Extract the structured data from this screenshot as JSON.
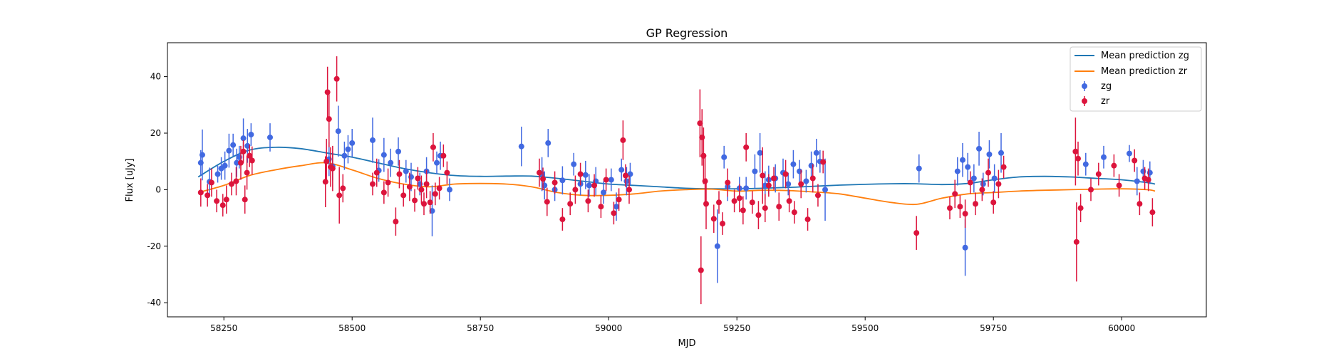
{
  "chart_data": {
    "type": "scatter",
    "title": "GP Regression",
    "xlabel": "MJD",
    "ylabel": "Flux [uJy]",
    "xlim": [
      58140,
      60165
    ],
    "ylim": [
      -45,
      52
    ],
    "xticks": [
      58250,
      58500,
      58750,
      59000,
      59250,
      59500,
      59750,
      60000
    ],
    "yticks": [
      -40,
      -20,
      0,
      20,
      40
    ],
    "legend_position": "top-right",
    "legend": [
      {
        "label": "Mean prediction zg",
        "kind": "line",
        "color": "#1f77b4"
      },
      {
        "label": "Mean prediction zr",
        "kind": "line",
        "color": "#ff7f0e"
      },
      {
        "label": "zg",
        "kind": "errorbar",
        "color": "#4169e1"
      },
      {
        "label": "zr",
        "kind": "errorbar",
        "color": "#dc143c"
      }
    ],
    "mean_prediction_zg": {
      "x": [
        58200,
        58250,
        58300,
        58350,
        58400,
        58450,
        58500,
        58550,
        58600,
        58650,
        58700,
        58750,
        58800,
        58850,
        58900,
        58950,
        59000,
        59050,
        59100,
        59150,
        59200,
        59250,
        59300,
        59350,
        59400,
        59450,
        59500,
        59550,
        59600,
        59650,
        59700,
        59750,
        59800,
        59850,
        59900,
        59950,
        60000,
        60050,
        60065
      ],
      "y": [
        4.5,
        10,
        14,
        15,
        14.5,
        13,
        11.5,
        9.5,
        7.5,
        6,
        5,
        4.7,
        4.8,
        4.8,
        4,
        3,
        2,
        1.5,
        1,
        0.5,
        0.3,
        0.3,
        0.5,
        0.8,
        1.2,
        1.6,
        1.9,
        2.1,
        2.1,
        1.8,
        2.2,
        3.5,
        4.5,
        4.7,
        4.5,
        4,
        3.5,
        2.5,
        2
      ]
    },
    "mean_prediction_zr": {
      "x": [
        58200,
        58250,
        58300,
        58350,
        58400,
        58450,
        58500,
        58550,
        58600,
        58650,
        58700,
        58750,
        58800,
        58850,
        58900,
        58950,
        59000,
        59050,
        59100,
        59150,
        59200,
        59250,
        59300,
        59350,
        59400,
        59450,
        59500,
        59550,
        59600,
        59650,
        59700,
        59750,
        59800,
        59850,
        59900,
        59950,
        60000,
        60050,
        60065
      ],
      "y": [
        -1,
        1.5,
        5,
        7,
        8.5,
        9.5,
        7,
        4,
        2,
        1,
        2,
        2.2,
        2,
        1,
        -1,
        -2,
        -2,
        -1.5,
        -0.5,
        0,
        0.2,
        -0.5,
        -0.2,
        -0.3,
        -0.8,
        -1.5,
        -3,
        -4.5,
        -5.2,
        -3,
        -1.5,
        -1,
        -0.5,
        -0.2,
        0,
        0.2,
        0.3,
        0,
        -0.5
      ]
    },
    "series": [
      {
        "name": "zg",
        "x": [
          58205,
          58208,
          58222,
          58238,
          58245,
          58252,
          58260,
          58268,
          58275,
          58280,
          58288,
          58296,
          58303,
          58340,
          58455,
          58462,
          58473,
          58485,
          58492,
          58500,
          58540,
          58552,
          58562,
          58575,
          58590,
          58605,
          58615,
          58632,
          58645,
          58656,
          58665,
          58672,
          58690,
          58830,
          58870,
          58875,
          58882,
          58895,
          58910,
          58932,
          58945,
          58955,
          58962,
          58975,
          58990,
          59005,
          59015,
          59025,
          59035,
          59042,
          59212,
          59225,
          59232,
          59255,
          59268,
          59285,
          59295,
          59305,
          59312,
          59325,
          59340,
          59350,
          59360,
          59372,
          59385,
          59395,
          59405,
          59412,
          59422,
          59605,
          59680,
          59690,
          59695,
          59700,
          59712,
          59722,
          59730,
          59742,
          59752,
          59765,
          59930,
          59965,
          60015,
          60030,
          60042,
          60055
        ],
        "y": [
          9.5,
          12.3,
          2.8,
          5.5,
          7.5,
          8.5,
          13.8,
          15.8,
          9.5,
          11.5,
          18.2,
          15.5,
          19.5,
          18.5,
          10.8,
          8.3,
          20.7,
          12,
          14.3,
          16.5,
          17.5,
          6.8,
          12.3,
          9.5,
          13.5,
          6.5,
          4.5,
          2,
          6.5,
          -7.5,
          9.5,
          12,
          0,
          15.3,
          5.5,
          1.5,
          16.5,
          0,
          3.3,
          9,
          2,
          5.2,
          1.5,
          3,
          -1,
          3.5,
          -6,
          7,
          3,
          5.5,
          -20,
          11.5,
          1,
          0.5,
          0.5,
          6.5,
          13,
          1.5,
          3.5,
          4,
          6,
          2,
          9,
          6.5,
          3,
          8.5,
          13,
          10,
          0,
          7.5,
          6.5,
          10.5,
          -20.5,
          8,
          4,
          14.5,
          2,
          12.5,
          4,
          13,
          9,
          11.5,
          12.8,
          3,
          6.5,
          6
        ],
        "err": [
          4.5,
          9,
          5,
          3,
          4,
          5,
          6,
          4,
          5,
          4,
          7,
          6,
          4,
          5,
          6,
          5,
          9,
          5,
          5,
          5,
          8,
          4,
          6,
          5,
          5,
          4,
          5,
          4,
          5,
          9,
          4,
          5,
          4,
          7,
          6,
          5,
          5,
          4,
          5,
          4,
          4,
          5,
          4,
          5,
          4,
          4,
          5,
          4,
          5,
          4,
          13,
          4,
          5,
          4,
          4,
          6,
          7,
          5,
          5,
          5,
          5,
          4,
          5,
          4,
          4,
          5,
          5,
          4,
          11,
          5,
          5,
          6,
          10,
          5,
          5,
          6,
          4,
          5,
          5,
          7,
          4,
          4,
          3,
          5,
          4,
          4
        ]
      },
      {
        "name": "zr",
        "x": [
          58205,
          58218,
          58226,
          58236,
          58248,
          58255,
          58265,
          58274,
          58283,
          58288,
          58291,
          58295,
          58300,
          58305,
          58448,
          58450,
          58452,
          58455,
          58458,
          58462,
          58470,
          58475,
          58482,
          58540,
          58548,
          58562,
          58570,
          58585,
          58592,
          58600,
          58612,
          58622,
          58628,
          58635,
          58640,
          58645,
          58652,
          58658,
          58662,
          58670,
          58678,
          58685,
          58865,
          58872,
          58880,
          58895,
          58910,
          58925,
          58935,
          58945,
          58960,
          58972,
          58985,
          58995,
          59010,
          59020,
          59028,
          59033,
          59040,
          59178,
          59180,
          59182,
          59185,
          59188,
          59190,
          59205,
          59215,
          59222,
          59232,
          59245,
          59255,
          59262,
          59268,
          59280,
          59292,
          59300,
          59305,
          59312,
          59322,
          59332,
          59345,
          59352,
          59362,
          59375,
          59388,
          59398,
          59408,
          59418,
          59600,
          59665,
          59675,
          59685,
          59695,
          59705,
          59715,
          59728,
          59740,
          59750,
          59760,
          59770,
          59910,
          59912,
          59915,
          59920,
          59940,
          59955,
          59985,
          59995,
          60025,
          60035,
          60045,
          60052,
          60060
        ],
        "y": [
          -1,
          -2,
          2.5,
          -4,
          -5.5,
          -3.5,
          2,
          3,
          9.5,
          13.5,
          -3.5,
          6,
          12,
          10.3,
          2.8,
          10,
          34.5,
          25,
          8,
          7.5,
          39.2,
          -2,
          0.5,
          2,
          6,
          -1,
          2.5,
          -11.3,
          5.5,
          -2,
          1,
          -3.8,
          4,
          0,
          -5,
          2,
          -4.5,
          15,
          -1.5,
          0.5,
          12,
          6,
          6,
          3.8,
          -4.3,
          2.5,
          -10.5,
          -5,
          0,
          5.5,
          -4,
          1.5,
          -6,
          3.5,
          -8.3,
          -3.5,
          17.5,
          5,
          0,
          23.5,
          -28.5,
          18.5,
          12,
          3,
          -5,
          -10.3,
          -4.5,
          -12,
          2.5,
          -4,
          -3,
          -7.3,
          15,
          -4.5,
          -9,
          5,
          -6.5,
          1.5,
          4,
          -6,
          5.5,
          -4,
          -8,
          2,
          -10.5,
          4,
          -2,
          9.8,
          -15.3,
          -6.5,
          -1.5,
          -6,
          -8.5,
          2.5,
          -5,
          0,
          6,
          -4.5,
          2,
          8,
          13.5,
          -18.5,
          11,
          -6.5,
          0,
          5.5,
          8.5,
          1.5,
          10.3,
          -5,
          4,
          3.5,
          -8
        ],
        "err": [
          5,
          4,
          5,
          4,
          4,
          5,
          4,
          5,
          6,
          4,
          5,
          6,
          4,
          5,
          9,
          8,
          9,
          10,
          7,
          8,
          8,
          10,
          5,
          4,
          5,
          4,
          5,
          5,
          5,
          4,
          5,
          4,
          4,
          5,
          4,
          5,
          4,
          5,
          4,
          4,
          4,
          4,
          5,
          4,
          5,
          4,
          4,
          4,
          5,
          4,
          4,
          4,
          4,
          4,
          4,
          4,
          7,
          4,
          5,
          12,
          12,
          10,
          10,
          9,
          9,
          5,
          4,
          4,
          5,
          4,
          5,
          5,
          5,
          4,
          5,
          10,
          5,
          4,
          4,
          5,
          5,
          4,
          4,
          5,
          4,
          5,
          4,
          4,
          6,
          4,
          5,
          4,
          5,
          4,
          4,
          4,
          5,
          4,
          5,
          4,
          12,
          14,
          6,
          5,
          4,
          4,
          4,
          4,
          4,
          4,
          4,
          4,
          5
        ]
      }
    ]
  }
}
